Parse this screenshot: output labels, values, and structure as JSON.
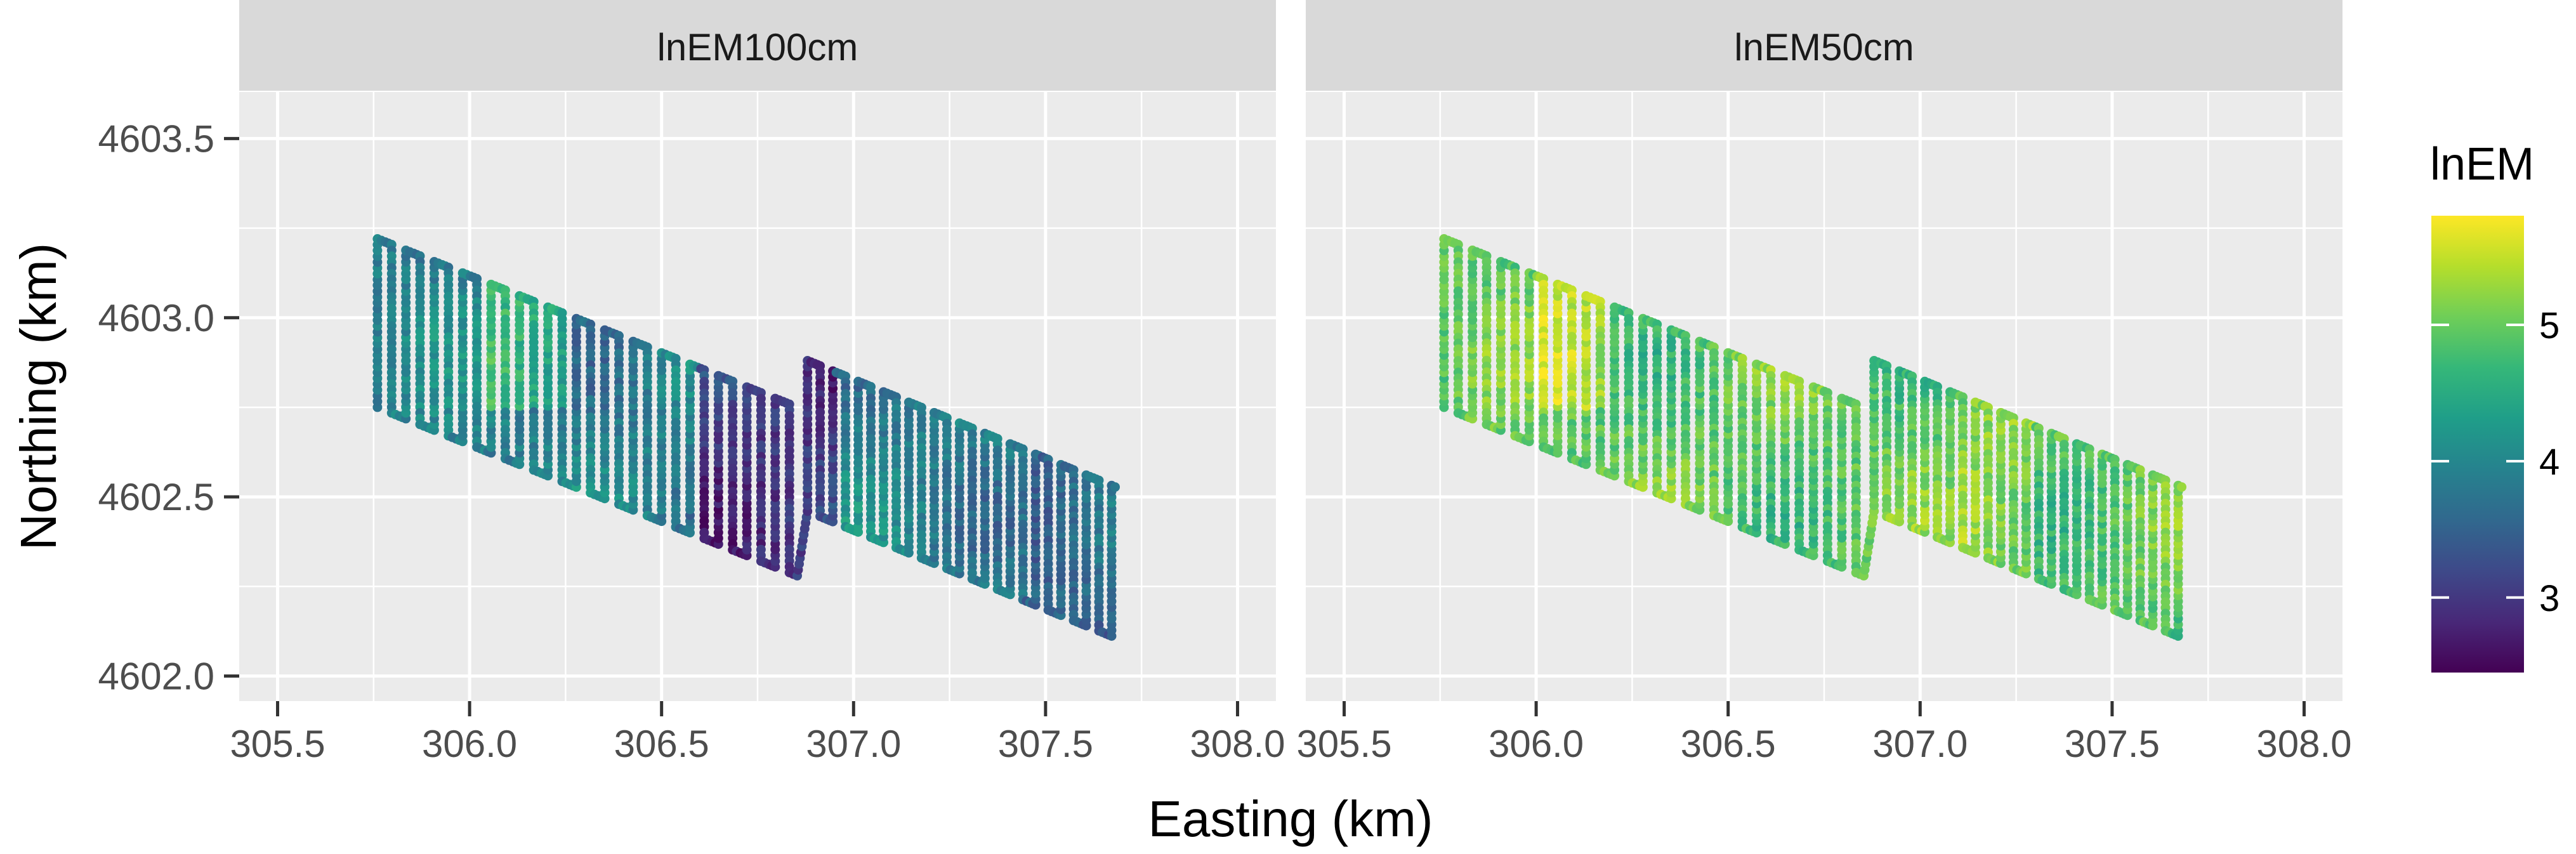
{
  "chart_data": {
    "type": "scatter",
    "facets": [
      "lnEM100cm",
      "lnEM50cm"
    ],
    "xlabel": "Easting (km)",
    "ylabel": "Northing (km)",
    "xlim": [
      305.4,
      308.1
    ],
    "ylim": [
      4601.93,
      4603.63
    ],
    "xticks": [
      305.5,
      306.0,
      306.5,
      307.0,
      307.5,
      308.0
    ],
    "xtick_labels": [
      "305.5",
      "306.0",
      "306.5",
      "307.0",
      "307.5",
      "308.0"
    ],
    "yticks": [
      4602.0,
      4602.5,
      4603.0,
      4603.5
    ],
    "ytick_labels": [
      "4602.0",
      "4602.5",
      "4603.0",
      "4603.5"
    ],
    "grid": true,
    "color_scale": {
      "name": "viridis",
      "title": "lnEM",
      "range": [
        2.45,
        5.8
      ],
      "ticks": [
        3,
        4,
        5
      ],
      "tick_labels": [
        "3",
        "4",
        "5"
      ],
      "colors": [
        "#440154",
        "#482878",
        "#3e4989",
        "#31688e",
        "#26828e",
        "#1f9e89",
        "#35b779",
        "#6ece58",
        "#b5de2b",
        "#fde725"
      ]
    },
    "survey_track": {
      "sections": [
        {
          "x_start": 305.76,
          "x_end": 306.84,
          "y_top_start": 4603.22,
          "slope": -0.43,
          "height": 0.47,
          "spacing": 0.037
        },
        {
          "x_start": 306.88,
          "x_end": 307.68,
          "y_top_start": 4602.88,
          "slope": -0.44,
          "height": 0.42,
          "spacing": 0.033
        }
      ],
      "mean_lnEM": {
        "lnEM100cm": 3.9,
        "lnEM50cm": 4.95
      }
    }
  },
  "legend": {
    "position": "right"
  }
}
